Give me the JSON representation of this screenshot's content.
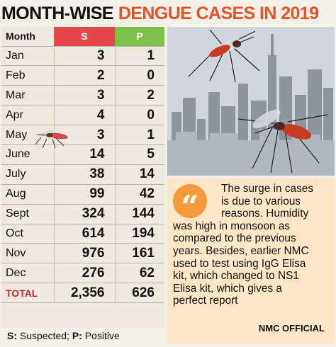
{
  "headline": {
    "black": "MONTH-WISE",
    "red": "DENGUE CASES IN 2019"
  },
  "table": {
    "headers": {
      "month": "Month",
      "s": "S",
      "p": "P"
    },
    "rows": [
      {
        "month": "Jan",
        "s": "3",
        "p": "1"
      },
      {
        "month": "Feb",
        "s": "2",
        "p": "0"
      },
      {
        "month": "Mar",
        "s": "3",
        "p": "2"
      },
      {
        "month": "Apr",
        "s": "4",
        "p": "0"
      },
      {
        "month": "May",
        "s": "3",
        "p": "1"
      },
      {
        "month": "June",
        "s": "14",
        "p": "5"
      },
      {
        "month": "July",
        "s": "38",
        "p": "14"
      },
      {
        "month": "Aug",
        "s": "99",
        "p": "42"
      },
      {
        "month": "Sept",
        "s": "324",
        "p": "144"
      },
      {
        "month": "Oct",
        "s": "614",
        "p": "194"
      },
      {
        "month": "Nov",
        "s": "976",
        "p": "161"
      },
      {
        "month": "Dec",
        "s": "276",
        "p": "62"
      }
    ],
    "total": {
      "label": "TOTAL",
      "s": "2,356",
      "p": "626"
    }
  },
  "legend": {
    "s_key": "S:",
    "s_text": " Suspected; ",
    "p_key": "P:",
    "p_text": " Positive"
  },
  "quote": {
    "lines_indented": [
      "The surge in cases",
      "is due to various",
      "reasons. Humidity"
    ],
    "lines": [
      "was high in monsoon as",
      "compared to the previous",
      "years. Besides, earlier NMC",
      "used to test using IgG Elisa",
      "kit, which changed to NS1",
      "Elisa kit, which gives a",
      "perfect report"
    ],
    "source": "NMC OFFICIAL",
    "mark": "“"
  },
  "colors": {
    "s_header": "#e4474c",
    "p_header": "#7cc14a",
    "headline_red": "#e2532a",
    "quote_bg": "#fde7c7",
    "quote_mark": "#f39a3a"
  },
  "icons": [
    "mosquito-icon",
    "quote-icon",
    "skyline-photo"
  ]
}
